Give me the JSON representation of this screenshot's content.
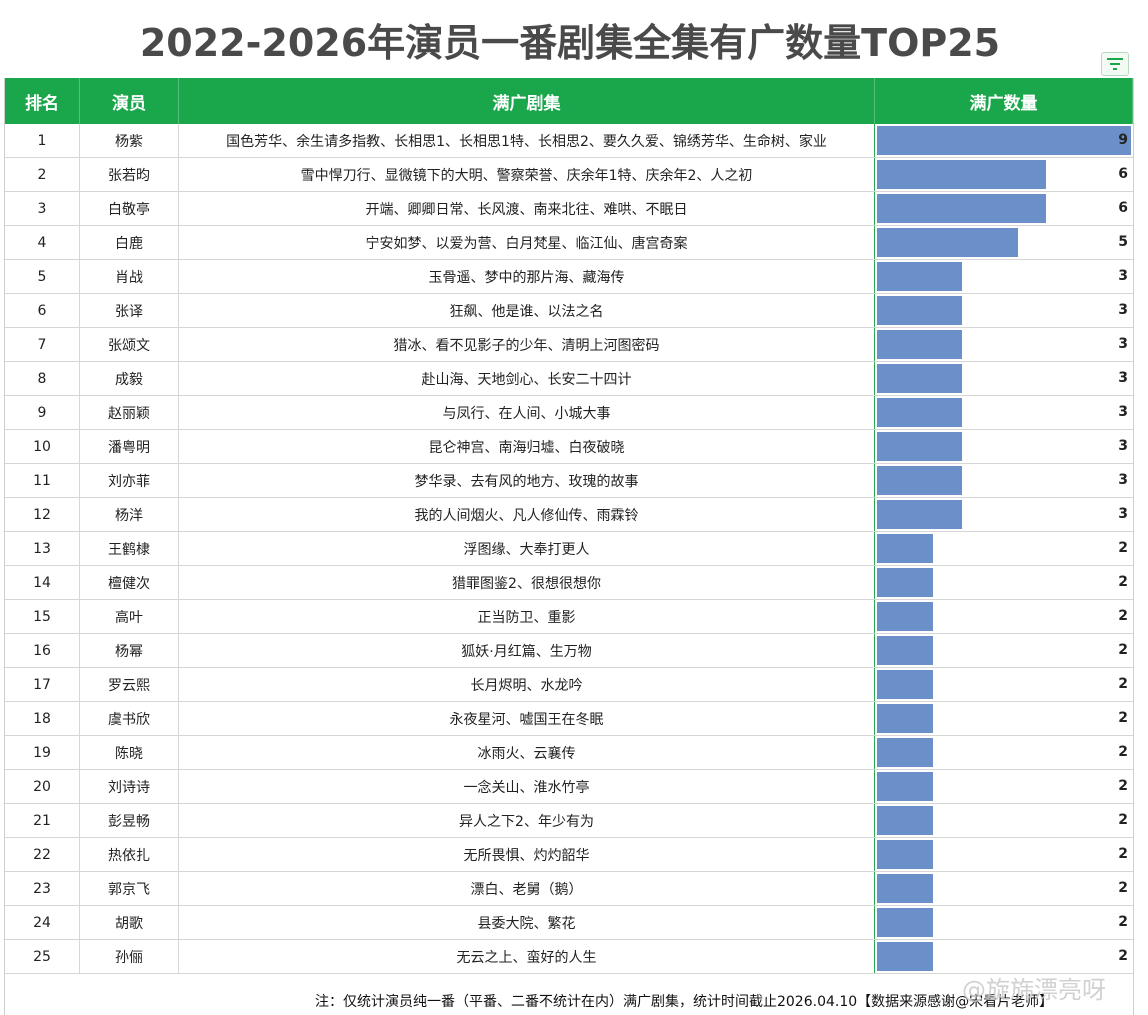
{
  "title": "2022-2026年演员一番剧集全集有广数量TOP25",
  "headers": {
    "rank": "排名",
    "actor": "演员",
    "shows": "满广剧集",
    "count": "满广数量"
  },
  "note": "注：仅统计演员纯一番（平番、二番不统计在内）满广剧集，统计时间截止2026.04.10【数据来源感谢@宋看片老师】",
  "watermark": "@旋旆漂亮呀",
  "colors": {
    "header": "#1aa64a",
    "bar": "#6a8fc9"
  },
  "icons": {
    "filter": "filter-icon"
  },
  "chart_data": {
    "type": "bar",
    "title": "2022-2026年演员一番剧集全集有广数量TOP25",
    "xlabel": "满广数量",
    "ylabel": "演员",
    "xlim": [
      0,
      9
    ],
    "rows": [
      {
        "rank": "1",
        "actor": "杨紫",
        "shows": "国色芳华、余生请多指教、长相思1、长相思1特、长相思2、要久久爱、锦绣芳华、生命树、家业",
        "value": 9
      },
      {
        "rank": "2",
        "actor": "张若昀",
        "shows": "雪中悍刀行、显微镜下的大明、警察荣誉、庆余年1特、庆余年2、人之初",
        "value": 6
      },
      {
        "rank": "3",
        "actor": "白敬亭",
        "shows": "开端、卿卿日常、长风渡、南来北往、难哄、不眠日",
        "value": 6
      },
      {
        "rank": "4",
        "actor": "白鹿",
        "shows": "宁安如梦、以爱为营、白月梵星、临江仙、唐宫奇案",
        "value": 5
      },
      {
        "rank": "5",
        "actor": "肖战",
        "shows": "玉骨遥、梦中的那片海、藏海传",
        "value": 3
      },
      {
        "rank": "6",
        "actor": "张译",
        "shows": "狂飙、他是谁、以法之名",
        "value": 3
      },
      {
        "rank": "7",
        "actor": "张颂文",
        "shows": "猎冰、看不见影子的少年、清明上河图密码",
        "value": 3
      },
      {
        "rank": "8",
        "actor": "成毅",
        "shows": "赴山海、天地剑心、长安二十四计",
        "value": 3
      },
      {
        "rank": "9",
        "actor": "赵丽颖",
        "shows": "与凤行、在人间、小城大事",
        "value": 3
      },
      {
        "rank": "10",
        "actor": "潘粤明",
        "shows": "昆仑神宫、南海归墟、白夜破晓",
        "value": 3
      },
      {
        "rank": "11",
        "actor": "刘亦菲",
        "shows": "梦华录、去有风的地方、玫瑰的故事",
        "value": 3
      },
      {
        "rank": "12",
        "actor": "杨洋",
        "shows": "我的人间烟火、凡人修仙传、雨霖铃",
        "value": 3
      },
      {
        "rank": "13",
        "actor": "王鹤棣",
        "shows": "浮图缘、大奉打更人",
        "value": 2
      },
      {
        "rank": "14",
        "actor": "檀健次",
        "shows": "猎罪图鉴2、很想很想你",
        "value": 2
      },
      {
        "rank": "15",
        "actor": "高叶",
        "shows": "正当防卫、重影",
        "value": 2
      },
      {
        "rank": "16",
        "actor": "杨幂",
        "shows": "狐妖·月红篇、生万物",
        "value": 2
      },
      {
        "rank": "17",
        "actor": "罗云熙",
        "shows": "长月烬明、水龙吟",
        "value": 2
      },
      {
        "rank": "18",
        "actor": "虞书欣",
        "shows": "永夜星河、嘘国王在冬眠",
        "value": 2
      },
      {
        "rank": "19",
        "actor": "陈晓",
        "shows": "冰雨火、云襄传",
        "value": 2
      },
      {
        "rank": "20",
        "actor": "刘诗诗",
        "shows": "一念关山、淮水竹亭",
        "value": 2
      },
      {
        "rank": "21",
        "actor": "彭昱畅",
        "shows": "异人之下2、年少有为",
        "value": 2
      },
      {
        "rank": "22",
        "actor": "热依扎",
        "shows": "无所畏惧、灼灼韶华",
        "value": 2
      },
      {
        "rank": "23",
        "actor": "郭京飞",
        "shows": "漂白、老舅（鹅）",
        "value": 2
      },
      {
        "rank": "24",
        "actor": "胡歌",
        "shows": "县委大院、繁花",
        "value": 2
      },
      {
        "rank": "25",
        "actor": "孙俪",
        "shows": "无云之上、蛮好的人生",
        "value": 2
      }
    ]
  }
}
